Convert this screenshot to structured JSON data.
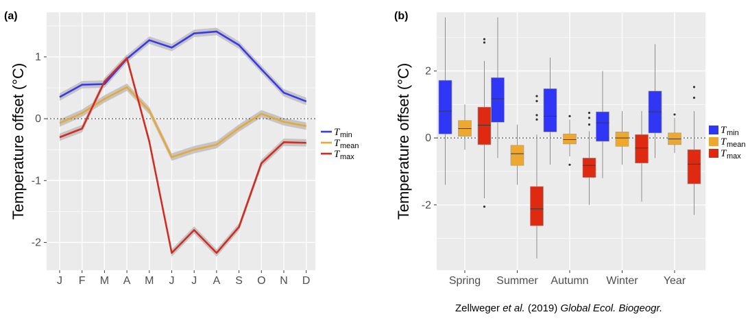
{
  "chart_data": [
    {
      "type": "line",
      "panel_label": "(a)",
      "ylabel": "Temperature offset (°C)",
      "xlabel": "",
      "categories": [
        "J",
        "F",
        "M",
        "A",
        "M",
        "J",
        "J",
        "A",
        "S",
        "O",
        "N",
        "D"
      ],
      "ylim": [
        -2.45,
        1.72
      ],
      "yticks": [
        -2,
        -1,
        0,
        1
      ],
      "ytick_labels": [
        "-2",
        "-1",
        "0",
        "1"
      ],
      "reference_line": 0,
      "confidence_band": 0.06,
      "series": [
        {
          "name": "Tmin",
          "symbol": "T",
          "sub": "min",
          "color": "#3838f2",
          "values": [
            0.35,
            0.55,
            0.56,
            0.97,
            1.27,
            1.15,
            1.38,
            1.41,
            1.19,
            0.8,
            0.42,
            0.28
          ]
        },
        {
          "name": "Tmean",
          "symbol": "T",
          "sub": "mean",
          "color": "#e8a838",
          "values": [
            -0.07,
            0.09,
            0.32,
            0.51,
            0.13,
            -0.62,
            -0.5,
            -0.42,
            -0.15,
            0.08,
            -0.05,
            -0.12
          ]
        },
        {
          "name": "Tmax",
          "symbol": "T",
          "sub": "max",
          "color": "#d42b1f",
          "values": [
            -0.3,
            -0.16,
            0.6,
            0.98,
            -0.37,
            -2.17,
            -1.8,
            -2.17,
            -1.75,
            -0.72,
            -0.38,
            -0.39
          ]
        }
      ],
      "legend": "right"
    },
    {
      "type": "box",
      "panel_label": "(b)",
      "ylabel": "Temperature offset (°C)",
      "xlabel": "",
      "categories": [
        "Spring",
        "Summer",
        "Autumn",
        "Winter",
        "Year"
      ],
      "ylim": [
        -3.95,
        3.75
      ],
      "yticks": [
        -2,
        0,
        2
      ],
      "ytick_labels": [
        "-2",
        "0",
        "2"
      ],
      "reference_line": 0,
      "series_names": [
        "Tmin",
        "Tmean",
        "Tmax"
      ],
      "colors": [
        "#2f36f5",
        "#eda830",
        "#de2a10"
      ],
      "boxes": [
        {
          "category": "Spring",
          "series": "Tmin",
          "whisker_low": -1.4,
          "q1": 0.12,
          "median": 0.8,
          "q3": 1.72,
          "whisker_high": 3.6,
          "outliers": []
        },
        {
          "category": "Spring",
          "series": "Tmean",
          "whisker_low": -0.35,
          "q1": 0.05,
          "median": 0.28,
          "q3": 0.52,
          "whisker_high": 1.0,
          "outliers": []
        },
        {
          "category": "Spring",
          "series": "Tmax",
          "whisker_low": -1.8,
          "q1": -0.2,
          "median": 0.38,
          "q3": 0.92,
          "whisker_high": 2.3,
          "outliers": [
            2.85,
            2.95,
            -2.05
          ]
        },
        {
          "category": "Summer",
          "series": "Tmin",
          "whisker_low": -0.6,
          "q1": 0.47,
          "median": 1.17,
          "q3": 1.8,
          "whisker_high": 3.6,
          "outliers": []
        },
        {
          "category": "Summer",
          "series": "Tmean",
          "whisker_low": -1.4,
          "q1": -0.82,
          "median": -0.47,
          "q3": -0.22,
          "whisker_high": 0.4,
          "outliers": []
        },
        {
          "category": "Summer",
          "series": "Tmax",
          "whisker_low": -3.6,
          "q1": -2.62,
          "median": -2.12,
          "q3": -1.45,
          "whisker_high": 0.1,
          "outliers": [
            0.55,
            0.68,
            1.1,
            1.25
          ]
        },
        {
          "category": "Autumn",
          "series": "Tmin",
          "whisker_low": -0.8,
          "q1": 0.18,
          "median": 0.65,
          "q3": 1.47,
          "whisker_high": 2.4,
          "outliers": []
        },
        {
          "category": "Autumn",
          "series": "Tmean",
          "whisker_low": -0.55,
          "q1": -0.18,
          "median": -0.05,
          "q3": 0.12,
          "whisker_high": 0.55,
          "outliers": [
            0.65,
            -0.8
          ]
        },
        {
          "category": "Autumn",
          "series": "Tmax",
          "whisker_low": -2.0,
          "q1": -1.18,
          "median": -0.82,
          "q3": -0.6,
          "whisker_high": 0.2,
          "outliers": [
            0.4,
            0.6,
            0.75
          ]
        },
        {
          "category": "Winter",
          "series": "Tmin",
          "whisker_low": -1.2,
          "q1": -0.1,
          "median": 0.45,
          "q3": 0.78,
          "whisker_high": 2.0,
          "outliers": []
        },
        {
          "category": "Winter",
          "series": "Tmean",
          "whisker_low": -0.8,
          "q1": -0.25,
          "median": 0.0,
          "q3": 0.18,
          "whisker_high": 0.8,
          "outliers": []
        },
        {
          "category": "Winter",
          "series": "Tmax",
          "whisker_low": -1.9,
          "q1": -0.75,
          "median": -0.3,
          "q3": 0.1,
          "whisker_high": 0.8,
          "outliers": []
        },
        {
          "category": "Year",
          "series": "Tmin",
          "whisker_low": -0.6,
          "q1": 0.15,
          "median": 0.78,
          "q3": 1.4,
          "whisker_high": 2.8,
          "outliers": []
        },
        {
          "category": "Year",
          "series": "Tmean",
          "whisker_low": -0.45,
          "q1": -0.2,
          "median": -0.03,
          "q3": 0.15,
          "whisker_high": 0.6,
          "outliers": [
            0.7
          ]
        },
        {
          "category": "Year",
          "series": "Tmax",
          "whisker_low": -2.3,
          "q1": -1.37,
          "median": -0.78,
          "q3": -0.35,
          "whisker_high": 0.8,
          "outliers": [
            1.2,
            1.52
          ]
        }
      ],
      "legend": "right"
    }
  ],
  "citation": {
    "authors": "Zellweger",
    "etal": "et al.",
    "year": "(2019)",
    "journal": "Global Ecol. Biogeogr."
  }
}
